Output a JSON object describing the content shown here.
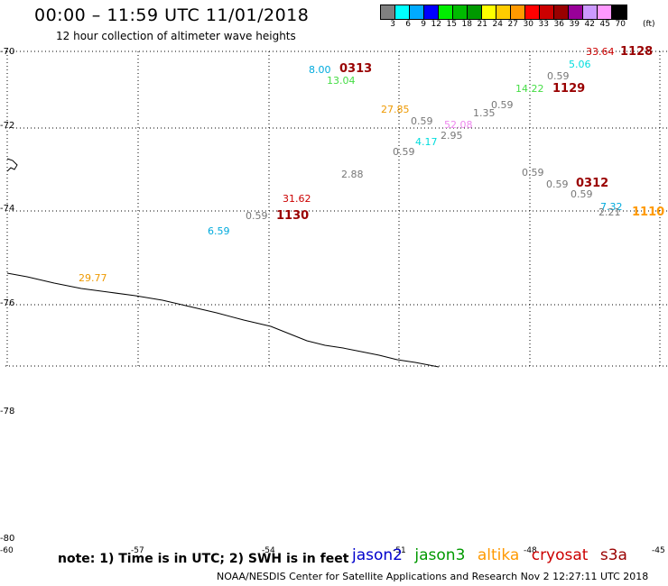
{
  "header": {
    "title": "00:00 – 11:59 UTC 11/01/2018",
    "subtitle": "12 hour collection of altimeter wave heights"
  },
  "legend": {
    "colors": [
      "#808080",
      "#00ffff",
      "#00aaff",
      "#0000ff",
      "#00ee00",
      "#00bb00",
      "#009900",
      "#ffff00",
      "#ffcc00",
      "#ff9900",
      "#ff0000",
      "#cc0000",
      "#990000",
      "#990099",
      "#cc99ff",
      "#ff99ff",
      "#000000"
    ],
    "ticks": [
      "3",
      "6",
      "9",
      "12",
      "15",
      "18",
      "21",
      "24",
      "27",
      "30",
      "33",
      "36",
      "39",
      "42",
      "45",
      "70"
    ],
    "unit": "(ft)"
  },
  "latitudes": [
    "-70",
    "-72",
    "-74",
    "-76",
    "-78",
    "-80"
  ],
  "longitudes": [
    "-60",
    "-57",
    "-54",
    "-51",
    "-48",
    "-45"
  ],
  "wave_heights": [
    {
      "text": "8.00",
      "color": "#00aadd"
    },
    {
      "text": "13.04",
      "color": "#44dd44"
    },
    {
      "text": "27.85",
      "color": "#ee9900"
    },
    {
      "text": "0.59",
      "color": "#777777"
    },
    {
      "text": "52.08",
      "color": "#ee88ee"
    },
    {
      "text": "1.35",
      "color": "#777777"
    },
    {
      "text": "0.59",
      "color": "#777777"
    },
    {
      "text": "14.22",
      "color": "#44dd44"
    },
    {
      "text": "0.59",
      "color": "#777777"
    },
    {
      "text": "5.06",
      "color": "#00dddd"
    },
    {
      "text": "33.64",
      "color": "#cc0000"
    },
    {
      "text": "4.17",
      "color": "#00dddd"
    },
    {
      "text": "2.95",
      "color": "#777777"
    },
    {
      "text": "0.59",
      "color": "#777777"
    },
    {
      "text": "2.88",
      "color": "#777777"
    },
    {
      "text": "0.59",
      "color": "#777777"
    },
    {
      "text": "0.59",
      "color": "#777777"
    },
    {
      "text": "0.59",
      "color": "#777777"
    },
    {
      "text": "31.62",
      "color": "#cc0000"
    },
    {
      "text": "0.59",
      "color": "#777777"
    },
    {
      "text": "7.32",
      "color": "#00aadd"
    },
    {
      "text": "2.21",
      "color": "#777777"
    },
    {
      "text": "6.59",
      "color": "#00aadd"
    },
    {
      "text": "29.77",
      "color": "#ee9900"
    }
  ],
  "pass_times": [
    {
      "text": "0313",
      "color": "#990000"
    },
    {
      "text": "1128",
      "color": "#990000"
    },
    {
      "text": "1129",
      "color": "#990000"
    },
    {
      "text": "0312",
      "color": "#990000"
    },
    {
      "text": "1130",
      "color": "#990000"
    },
    {
      "text": "1110",
      "color": "#ff9900"
    }
  ],
  "footer": {
    "note": "note: 1) Time is in UTC; 2) SWH is in feet",
    "satellites": [
      {
        "name": "jason2",
        "color": "#0000cc"
      },
      {
        "name": "jason3",
        "color": "#009900"
      },
      {
        "name": "altika",
        "color": "#ff9900"
      },
      {
        "name": "cryosat",
        "color": "#cc0000"
      },
      {
        "name": "s3a",
        "color": "#990000"
      }
    ],
    "credit": "NOAA/NESDIS Center for Satellite Applications and Research    Nov  2 12:27:11 UTC 2018"
  }
}
